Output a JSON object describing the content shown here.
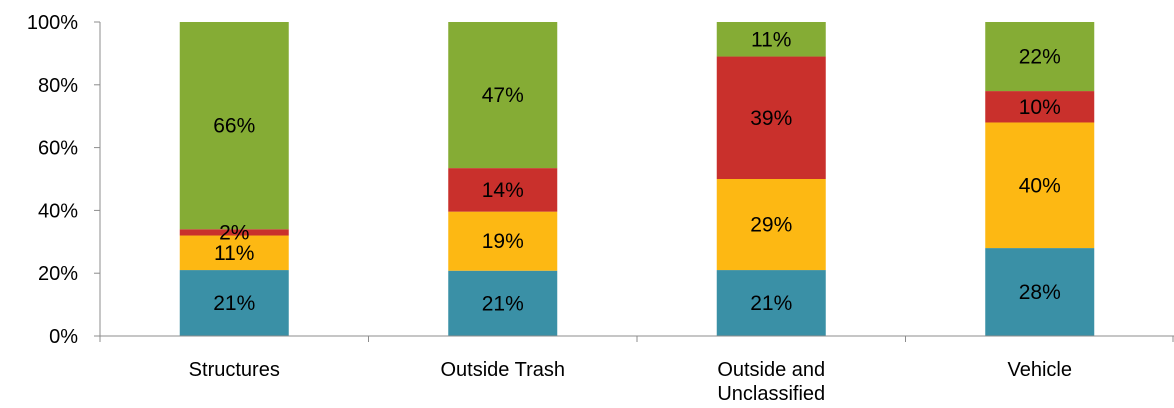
{
  "chart_data": {
    "type": "bar",
    "stacked": true,
    "normalized": true,
    "categories": [
      "Structures",
      "Outside Trash",
      "Outside and Unclassified",
      "Vehicle"
    ],
    "category_lines": [
      [
        "Structures"
      ],
      [
        "Outside Trash"
      ],
      [
        "Outside and",
        "Unclassified"
      ],
      [
        "Vehicle"
      ]
    ],
    "series": [
      {
        "color": "#3a90a6",
        "values": [
          21,
          21,
          21,
          28
        ]
      },
      {
        "color": "#fdb813",
        "values": [
          11,
          19,
          29,
          40
        ]
      },
      {
        "color": "#c9302c",
        "values": [
          2,
          14,
          39,
          10
        ]
      },
      {
        "color": "#85ac35",
        "values": [
          66,
          47,
          11,
          22
        ]
      }
    ],
    "labels": [
      [
        "21%",
        "21%",
        "21%",
        "28%"
      ],
      [
        "11%",
        "19%",
        "29%",
        "40%"
      ],
      [
        "2%",
        "14%",
        "39%",
        "10%"
      ],
      [
        "66%",
        "47%",
        "11%",
        "22%"
      ]
    ],
    "y_ticks": [
      "0%",
      "20%",
      "40%",
      "60%",
      "80%",
      "100%"
    ],
    "ylim": [
      0,
      100
    ],
    "grid": false,
    "legend": "none"
  }
}
